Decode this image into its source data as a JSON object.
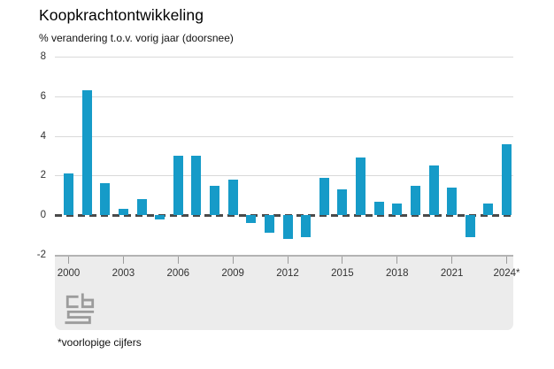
{
  "header": {
    "title": "Koopkrachtontwikkeling",
    "subtitle": "% verandering t.o.v. vorig jaar (doorsnee)"
  },
  "footnote": "*voorlopige cijfers",
  "logo": {
    "name": "cbs-logo"
  },
  "chart_data": {
    "type": "bar",
    "title": "Koopkrachtontwikkeling",
    "subtitle": "% verandering t.o.v. vorig jaar (doorsnee)",
    "categories": [
      "2000",
      "2001",
      "2002",
      "2003",
      "2004",
      "2005",
      "2006",
      "2007",
      "2008",
      "2009",
      "2010",
      "2011",
      "2012",
      "2013",
      "2014",
      "2015",
      "2016",
      "2017",
      "2018",
      "2019",
      "2020",
      "2021",
      "2022",
      "2023",
      "2024"
    ],
    "values": [
      2.1,
      6.3,
      1.6,
      0.3,
      0.8,
      -0.2,
      3.0,
      3.0,
      1.5,
      1.8,
      -0.4,
      -0.9,
      -1.2,
      -1.1,
      1.9,
      1.3,
      2.9,
      0.7,
      0.6,
      1.5,
      2.5,
      1.4,
      -1.1,
      0.6,
      3.6
    ],
    "xlabel": "",
    "ylabel": "% verandering t.o.v. vorig jaar (doorsnee)",
    "ylim": [
      -2,
      8
    ],
    "y_ticks": [
      8,
      6,
      4,
      2,
      0,
      -2
    ],
    "y_gridlines": [
      8,
      6,
      4,
      2
    ],
    "x_tick_labels": [
      "2000",
      "2003",
      "2006",
      "2009",
      "2012",
      "2015",
      "2018",
      "2021",
      "2024*"
    ],
    "x_tick_indices": [
      0,
      3,
      6,
      9,
      12,
      15,
      18,
      21,
      24
    ],
    "grid": true,
    "legend_position": "none",
    "zero_line": "dashed",
    "colors": {
      "bar": "#169bc8",
      "grid": "#d9d9d9",
      "zero_line": "#4a4a4a",
      "band": "#ececec",
      "axis_line": "#b3b3b3",
      "tick": "#9b9b9b",
      "logo": "#9c9c9c"
    }
  }
}
